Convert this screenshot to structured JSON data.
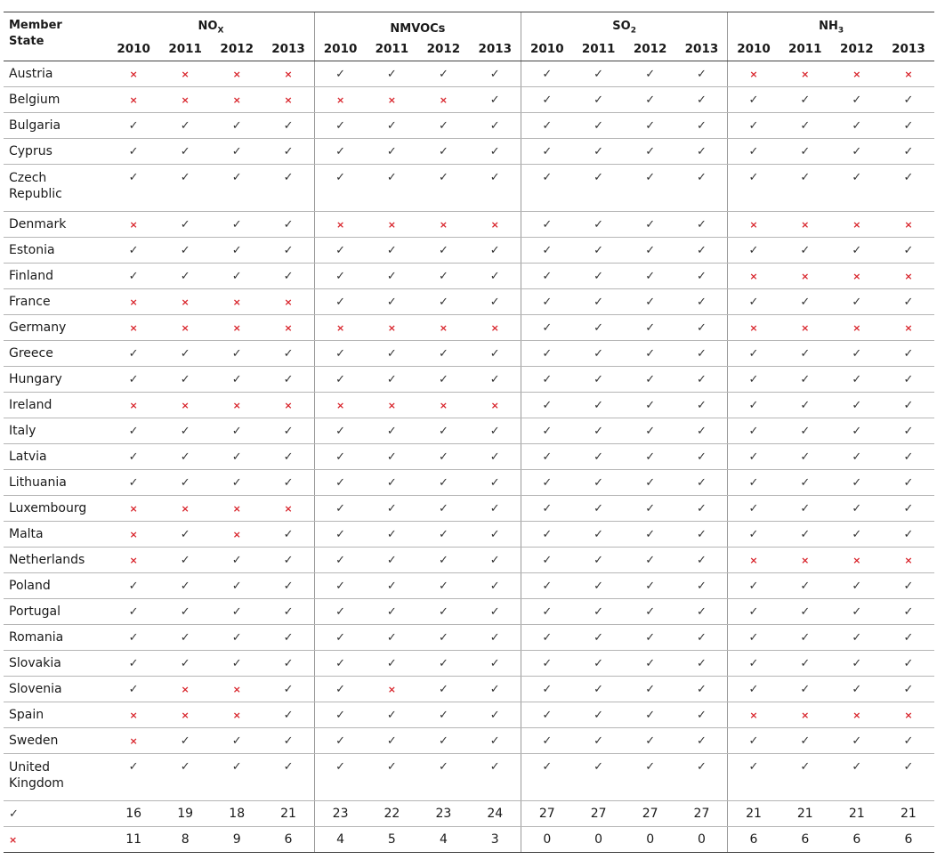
{
  "header": {
    "member_state_line1": "Member",
    "member_state_line2": "State",
    "groups": [
      {
        "base": "NO",
        "sub": "X"
      },
      {
        "base": "NMVOCs",
        "sub": ""
      },
      {
        "base": "SO",
        "sub": "2"
      },
      {
        "base": "NH",
        "sub": "3"
      }
    ],
    "years": [
      "2010",
      "2011",
      "2012",
      "2013"
    ]
  },
  "symbols": {
    "check": "✓",
    "cross": "×"
  },
  "rows": [
    {
      "name": [
        "Austria"
      ],
      "v": "XXXXCCCCCCCCXXXX"
    },
    {
      "name": [
        "Belgium"
      ],
      "v": "XXXXXXXCCCCCCCCC"
    },
    {
      "name": [
        "Bulgaria"
      ],
      "v": "CCCCCCCCCCCCCCCC"
    },
    {
      "name": [
        "Cyprus"
      ],
      "v": "CCCCCCCCCCCCCCCC"
    },
    {
      "name": [
        "Czech",
        "Republic"
      ],
      "v": "CCCCCCCCCCCCCCCC"
    },
    {
      "name": [
        "Denmark"
      ],
      "v": "XCCCXXXXCCCCXXXX"
    },
    {
      "name": [
        "Estonia"
      ],
      "v": "CCCCCCCCCCCCCCCC"
    },
    {
      "name": [
        "Finland"
      ],
      "v": "CCCCCCCCCCCCXXXX"
    },
    {
      "name": [
        "France"
      ],
      "v": "XXXXCCCCCCCCCCCC"
    },
    {
      "name": [
        "Germany"
      ],
      "v": "XXXXXXXXCCCCXXXX"
    },
    {
      "name": [
        "Greece"
      ],
      "v": "CCCCCCCCCCCCCCCC"
    },
    {
      "name": [
        "Hungary"
      ],
      "v": "CCCCCCCCCCCCCCCC"
    },
    {
      "name": [
        "Ireland"
      ],
      "v": "XXXXXXXXCCCCCCCC"
    },
    {
      "name": [
        "Italy"
      ],
      "v": "CCCCCCCCCCCCCCCC"
    },
    {
      "name": [
        "Latvia"
      ],
      "v": "CCCCCCCCCCCCCCCC"
    },
    {
      "name": [
        "Lithuania"
      ],
      "v": "CCCCCCCCCCCCCCCC"
    },
    {
      "name": [
        "Luxembourg"
      ],
      "v": "XXXXCCCCCCCCCCCC"
    },
    {
      "name": [
        "Malta"
      ],
      "v": "XCXCCCCCCCCCCCCC"
    },
    {
      "name": [
        "Netherlands"
      ],
      "v": "XCCCCCCCCCCCXXXX"
    },
    {
      "name": [
        "Poland"
      ],
      "v": "CCCCCCCCCCCCCCCC"
    },
    {
      "name": [
        "Portugal"
      ],
      "v": "CCCCCCCCCCCCCCCC"
    },
    {
      "name": [
        "Romania"
      ],
      "v": "CCCCCCCCCCCCCCCC"
    },
    {
      "name": [
        "Slovakia"
      ],
      "v": "CCCCCCCCCCCCCCCC"
    },
    {
      "name": [
        "Slovenia"
      ],
      "v": "CXXCCXCCCCCCCCCC"
    },
    {
      "name": [
        "Spain"
      ],
      "v": "XXXCCCCCCCCCXXXX"
    },
    {
      "name": [
        "Sweden"
      ],
      "v": "XCCCCCCCCCCCCCCC"
    },
    {
      "name": [
        "United",
        "Kingdom"
      ],
      "v": "CCCCCCCCCCCCCCCC"
    }
  ],
  "totals": {
    "check": [
      "16",
      "19",
      "18",
      "21",
      "23",
      "22",
      "23",
      "24",
      "27",
      "27",
      "27",
      "27",
      "21",
      "21",
      "21",
      "21"
    ],
    "cross": [
      "11",
      "8",
      "9",
      "6",
      "4",
      "5",
      "4",
      "3",
      "0",
      "0",
      "0",
      "0",
      "6",
      "6",
      "6",
      "6"
    ]
  }
}
